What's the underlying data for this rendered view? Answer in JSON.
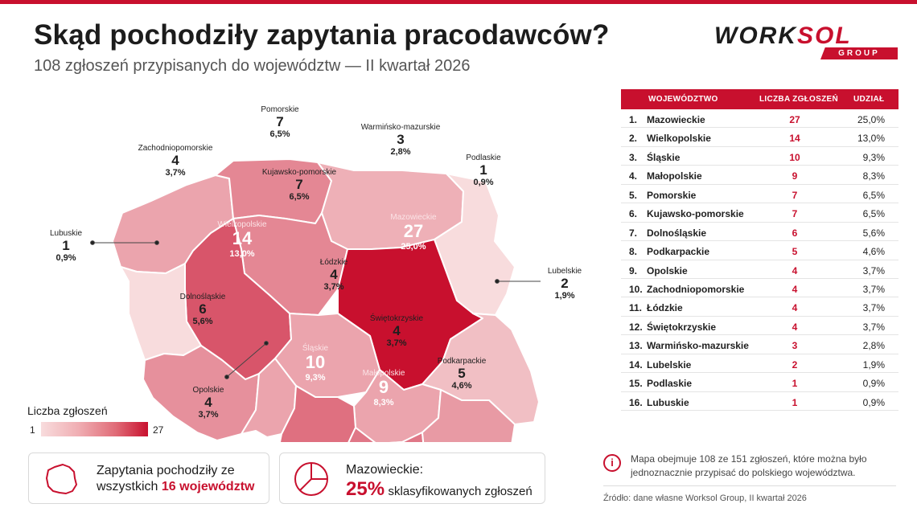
{
  "title": "Skąd pochodziły zapytania pracodawców?",
  "subtitle": "108 zgłoszeń przypisanych do województw — II kwartał 2026",
  "logo": {
    "text_main": "WORK",
    "text_accent": "SOL",
    "sub": "GROUP"
  },
  "colors": {
    "accent": "#c8102e",
    "scale_low": "#f8dcdd",
    "scale_high": "#c8102e"
  },
  "regions": [
    {
      "id": "pomorskie",
      "name": "Pomorskie",
      "count": "7",
      "share": "6,5%"
    },
    {
      "id": "warminsko",
      "name": "Warmińsko-mazurskie",
      "count": "3",
      "share": "2,8%"
    },
    {
      "id": "zachodnio",
      "name": "Zachodniopomorskie",
      "count": "4",
      "share": "3,7%"
    },
    {
      "id": "podlaskie",
      "name": "Podlaskie",
      "count": "1",
      "share": "0,9%"
    },
    {
      "id": "kujawsko",
      "name": "Kujawsko-pomorskie",
      "count": "7",
      "share": "6,5%"
    },
    {
      "id": "mazowieckie",
      "name": "Mazowieckie",
      "count": "27",
      "share": "25,0%"
    },
    {
      "id": "wielkopolskie",
      "name": "Wielkopolskie",
      "count": "14",
      "share": "13,0%"
    },
    {
      "id": "lubuskie",
      "name": "Lubuskie",
      "count": "1",
      "share": "0,9%"
    },
    {
      "id": "lodzkie",
      "name": "Łódzkie",
      "count": "4",
      "share": "3,7%"
    },
    {
      "id": "lubelskie",
      "name": "Lubelskie",
      "count": "2",
      "share": "1,9%"
    },
    {
      "id": "dolnoslaskie",
      "name": "Dolnośląskie",
      "count": "6",
      "share": "5,6%"
    },
    {
      "id": "swietokrzyskie",
      "name": "Świętokrzyskie",
      "count": "4",
      "share": "3,7%"
    },
    {
      "id": "opolskie",
      "name": "Opolskie",
      "count": "4",
      "share": "3,7%"
    },
    {
      "id": "slaskie",
      "name": "Śląskie",
      "count": "10",
      "share": "9,3%"
    },
    {
      "id": "malopolskie",
      "name": "Małopolskie",
      "count": "9",
      "share": "8,3%"
    },
    {
      "id": "podkarpackie",
      "name": "Podkarpackie",
      "count": "5",
      "share": "4,6%"
    }
  ],
  "legend": {
    "title": "Liczba zgłoszeń",
    "min": "1",
    "max": "27"
  },
  "cards": {
    "regions_line1": "Zapytania pochodziły ze",
    "regions_line2_prefix": "wszystkich",
    "regions_line2_strong": "16 województw",
    "mazowieckie_label": "Mazowieckie:",
    "mazowieckie_pct": "25%",
    "mazowieckie_tail": "sklasyfikowanych zgłoszeń"
  },
  "table": {
    "headers": {
      "region": "WOJEWÓDZTWO",
      "count": "LICZBA ZGŁOSZEŃ",
      "share": "UDZIAŁ"
    },
    "rows": [
      {
        "rank": "1.",
        "name": "Mazowieckie",
        "count": "27",
        "share": "25,0%"
      },
      {
        "rank": "2.",
        "name": "Wielkopolskie",
        "count": "14",
        "share": "13,0%"
      },
      {
        "rank": "3.",
        "name": "Śląskie",
        "count": "10",
        "share": "9,3%"
      },
      {
        "rank": "4.",
        "name": "Małopolskie",
        "count": "9",
        "share": "8,3%"
      },
      {
        "rank": "5.",
        "name": "Pomorskie",
        "count": "7",
        "share": "6,5%"
      },
      {
        "rank": "6.",
        "name": "Kujawsko-pomorskie",
        "count": "7",
        "share": "6,5%"
      },
      {
        "rank": "7.",
        "name": "Dolnośląskie",
        "count": "6",
        "share": "5,6%"
      },
      {
        "rank": "8.",
        "name": "Podkarpackie",
        "count": "5",
        "share": "4,6%"
      },
      {
        "rank": "9.",
        "name": "Opolskie",
        "count": "4",
        "share": "3,7%"
      },
      {
        "rank": "10.",
        "name": "Zachodniopomorskie",
        "count": "4",
        "share": "3,7%"
      },
      {
        "rank": "11.",
        "name": "Łódzkie",
        "count": "4",
        "share": "3,7%"
      },
      {
        "rank": "12.",
        "name": "Świętokrzyskie",
        "count": "4",
        "share": "3,7%"
      },
      {
        "rank": "13.",
        "name": "Warmińsko-mazurskie",
        "count": "3",
        "share": "2,8%"
      },
      {
        "rank": "14.",
        "name": "Lubelskie",
        "count": "2",
        "share": "1,9%"
      },
      {
        "rank": "15.",
        "name": "Podlaskie",
        "count": "1",
        "share": "0,9%"
      },
      {
        "rank": "16.",
        "name": "Lubuskie",
        "count": "1",
        "share": "0,9%"
      }
    ]
  },
  "note": "Mapa obejmuje 108 ze 151 zgłoszeń, które można było jednoznacznie przypisać do polskiego województwa.",
  "source": "Źródło: dane własne Worksol Group, II kwartał 2026"
}
